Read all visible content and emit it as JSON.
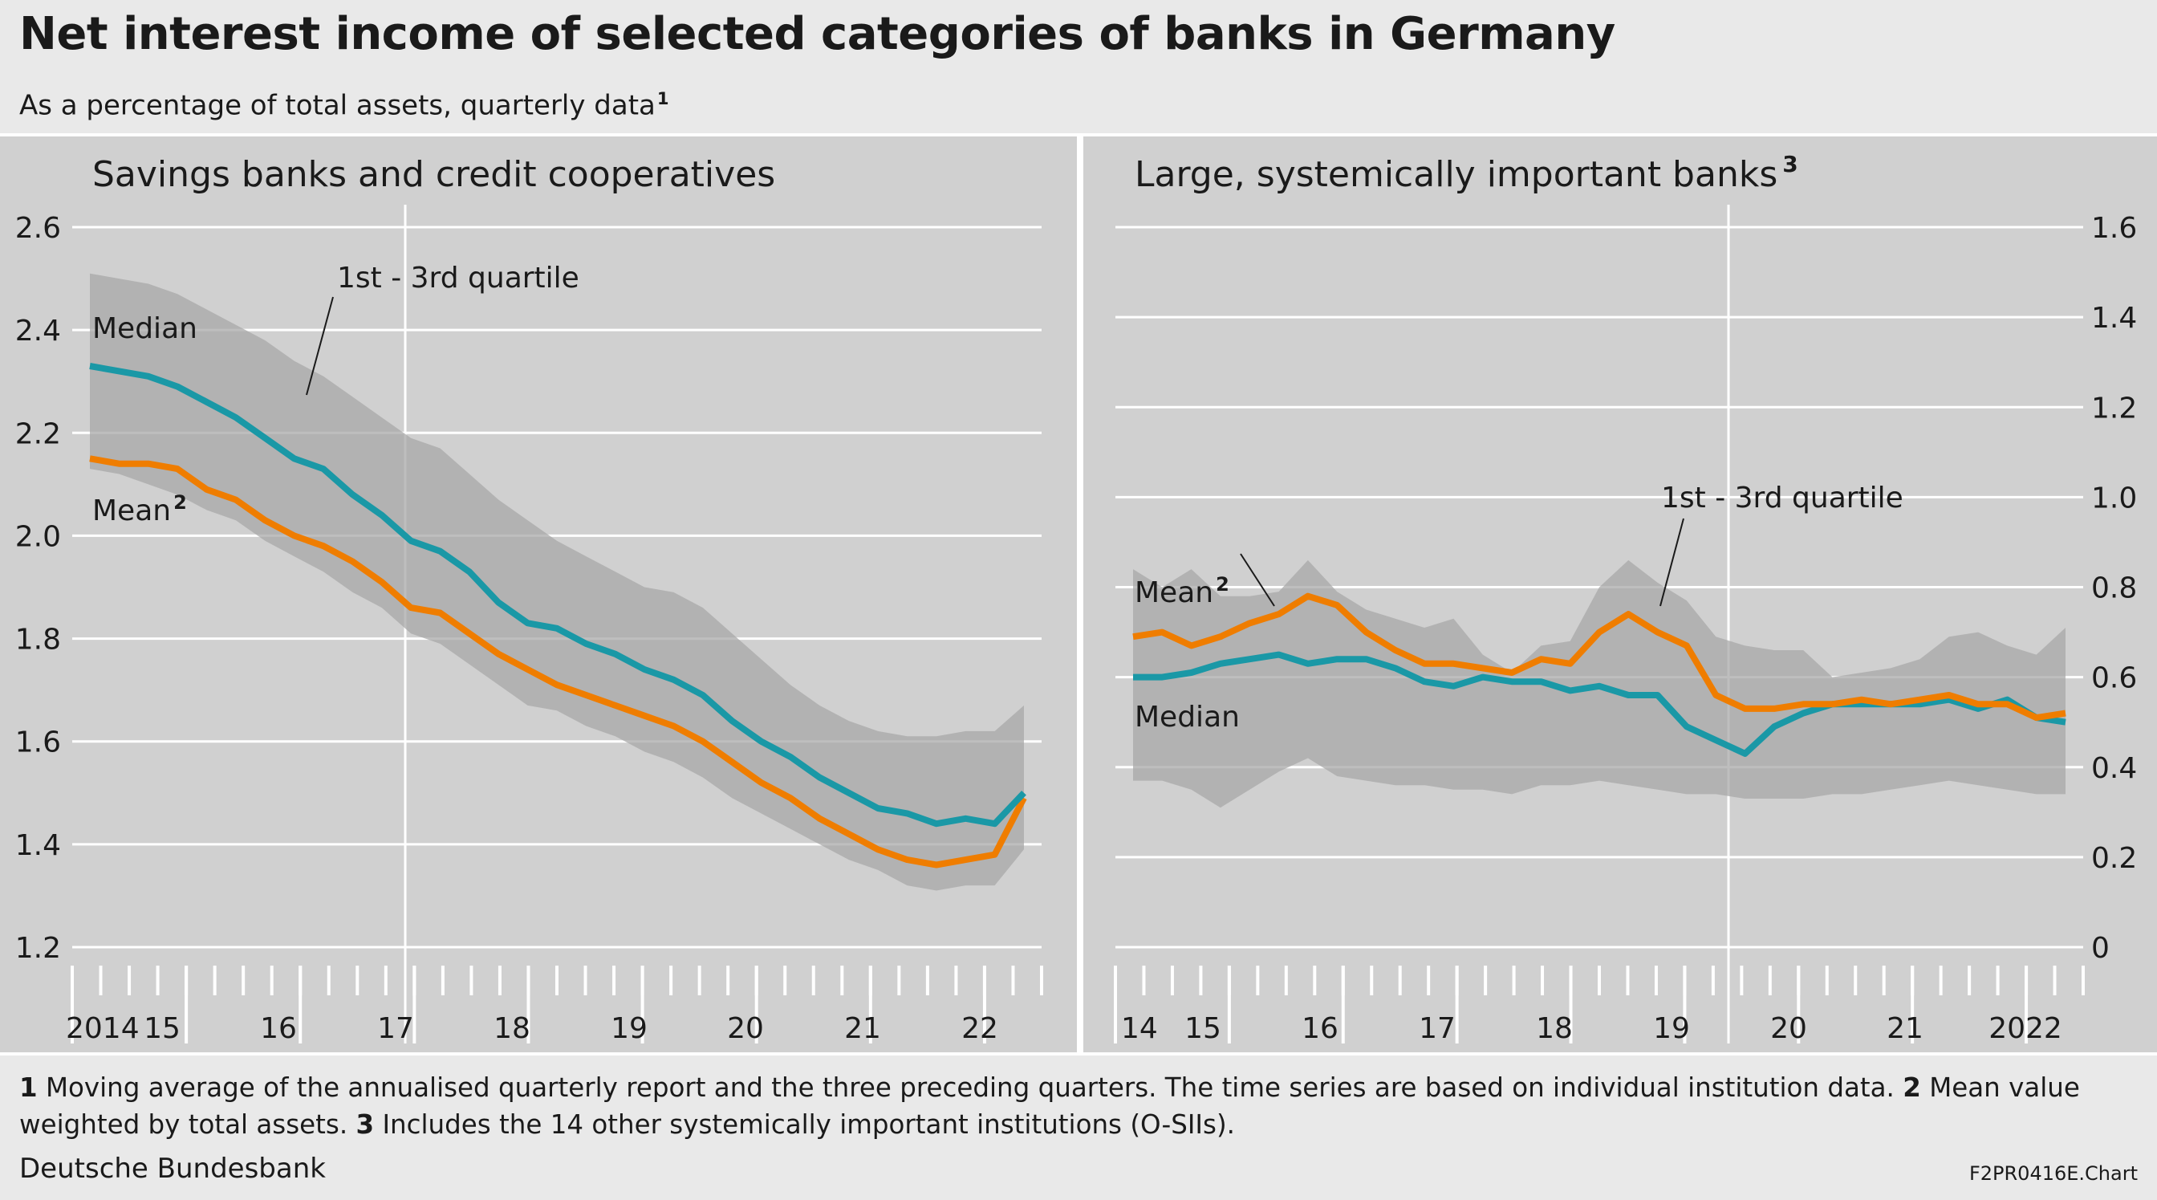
{
  "title": "Net interest income of selected categories of banks in Germany",
  "subtitle": "As a percentage of total assets, quarterly data",
  "subtitle_footnote": "1",
  "footnotes": {
    "n1": "1",
    "t1": "Moving average of the annualised quarterly report and the three preceding quarters. The time series are based on individual institution data.",
    "n2": "2",
    "t2": "Mean value weighted by total assets.",
    "n3": "3",
    "t3": "Includes the 14 other systemically important institutions (O-SIIs)."
  },
  "source": "Deutsche Bundesbank",
  "chart_id": "F2PR0416E.Chart",
  "colors": {
    "median": "#1a98a6",
    "mean": "#ef7d00",
    "band": "#a8a8a8",
    "panel": "#d0d0d0",
    "grid": "#ffffff"
  },
  "chart_data": [
    {
      "type": "line",
      "title": "Savings banks and credit cooperatives",
      "axis_side": "left",
      "ylim": [
        1.2,
        2.6
      ],
      "yticks": [
        "1.2",
        "1.4",
        "1.6",
        "1.8",
        "2.0",
        "2.2",
        "2.4",
        "2.6"
      ],
      "x_labels": [
        "2014",
        "15",
        "16",
        "17",
        "18",
        "19",
        "20",
        "21",
        "22"
      ],
      "x_start_quarter": "2014 Q1",
      "band_label": "1st - 3rd quartile",
      "grid": true,
      "series": [
        {
          "name": "Median",
          "values": [
            2.33,
            2.32,
            2.31,
            2.29,
            2.26,
            2.23,
            2.19,
            2.15,
            2.13,
            2.08,
            2.04,
            1.99,
            1.97,
            1.93,
            1.87,
            1.83,
            1.82,
            1.79,
            1.77,
            1.74,
            1.72,
            1.69,
            1.64,
            1.6,
            1.57,
            1.53,
            1.5,
            1.47,
            1.46,
            1.44,
            1.45,
            1.44,
            1.5
          ]
        },
        {
          "name": "Mean",
          "footnote": "2",
          "values": [
            2.15,
            2.14,
            2.14,
            2.13,
            2.09,
            2.07,
            2.03,
            2.0,
            1.98,
            1.95,
            1.91,
            1.86,
            1.85,
            1.81,
            1.77,
            1.74,
            1.71,
            1.69,
            1.67,
            1.65,
            1.63,
            1.6,
            1.56,
            1.52,
            1.49,
            1.45,
            1.42,
            1.39,
            1.37,
            1.36,
            1.37,
            1.38,
            1.49
          ]
        },
        {
          "name": "1st quartile",
          "values": [
            2.13,
            2.12,
            2.1,
            2.08,
            2.05,
            2.03,
            1.99,
            1.96,
            1.93,
            1.89,
            1.86,
            1.81,
            1.79,
            1.75,
            1.71,
            1.67,
            1.66,
            1.63,
            1.61,
            1.58,
            1.56,
            1.53,
            1.49,
            1.46,
            1.43,
            1.4,
            1.37,
            1.35,
            1.32,
            1.31,
            1.32,
            1.32,
            1.39
          ]
        },
        {
          "name": "3rd quartile",
          "values": [
            2.51,
            2.5,
            2.49,
            2.47,
            2.44,
            2.41,
            2.38,
            2.34,
            2.31,
            2.27,
            2.23,
            2.19,
            2.17,
            2.12,
            2.07,
            2.03,
            1.99,
            1.96,
            1.93,
            1.9,
            1.89,
            1.86,
            1.81,
            1.76,
            1.71,
            1.67,
            1.64,
            1.62,
            1.61,
            1.61,
            1.62,
            1.62,
            1.67
          ]
        }
      ]
    },
    {
      "type": "line",
      "title": "Large, systemically important banks",
      "title_footnote": "3",
      "axis_side": "right",
      "ylim": [
        0,
        1.6
      ],
      "yticks": [
        "0",
        "0.2",
        "0.4",
        "0.6",
        "0.8",
        "1.0",
        "1.2",
        "1.4",
        "1.6"
      ],
      "x_labels": [
        "14",
        "15",
        "16",
        "17",
        "18",
        "19",
        "20",
        "21",
        "2022"
      ],
      "x_start_quarter": "2014 Q1",
      "band_label": "1st - 3rd quartile",
      "grid": true,
      "series": [
        {
          "name": "Mean",
          "footnote": "2",
          "values": [
            0.69,
            0.7,
            0.67,
            0.69,
            0.72,
            0.74,
            0.78,
            0.76,
            0.7,
            0.66,
            0.63,
            0.63,
            0.62,
            0.61,
            0.64,
            0.63,
            0.7,
            0.74,
            0.7,
            0.67,
            0.56,
            0.53,
            0.53,
            0.54,
            0.54,
            0.55,
            0.54,
            0.55,
            0.56,
            0.54,
            0.54,
            0.51,
            0.52
          ]
        },
        {
          "name": "Median",
          "values": [
            0.6,
            0.6,
            0.61,
            0.63,
            0.64,
            0.65,
            0.63,
            0.64,
            0.64,
            0.62,
            0.59,
            0.58,
            0.6,
            0.59,
            0.59,
            0.57,
            0.58,
            0.56,
            0.56,
            0.49,
            0.46,
            0.43,
            0.49,
            0.52,
            0.54,
            0.54,
            0.54,
            0.54,
            0.55,
            0.53,
            0.55,
            0.51,
            0.5
          ]
        },
        {
          "name": "1st quartile",
          "values": [
            0.37,
            0.37,
            0.35,
            0.31,
            0.35,
            0.39,
            0.42,
            0.38,
            0.37,
            0.36,
            0.36,
            0.35,
            0.35,
            0.34,
            0.36,
            0.36,
            0.37,
            0.36,
            0.35,
            0.34,
            0.34,
            0.33,
            0.33,
            0.33,
            0.34,
            0.34,
            0.35,
            0.36,
            0.37,
            0.36,
            0.35,
            0.34,
            0.34
          ]
        },
        {
          "name": "3rd quartile",
          "values": [
            0.84,
            0.8,
            0.84,
            0.78,
            0.78,
            0.79,
            0.86,
            0.79,
            0.75,
            0.73,
            0.71,
            0.73,
            0.65,
            0.61,
            0.67,
            0.68,
            0.8,
            0.86,
            0.81,
            0.77,
            0.69,
            0.67,
            0.66,
            0.66,
            0.6,
            0.61,
            0.62,
            0.64,
            0.69,
            0.7,
            0.67,
            0.65,
            0.71
          ]
        }
      ]
    }
  ]
}
